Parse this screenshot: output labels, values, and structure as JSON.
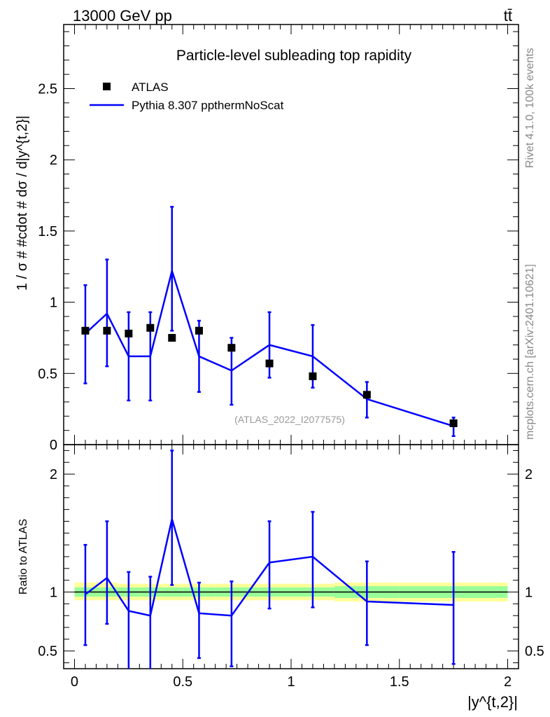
{
  "header": {
    "energy_label": "13000 GeV pp",
    "process_label": "tt̄"
  },
  "side_labels": {
    "rivet": "Rivet 4.1.0,  100k events",
    "mcplots": "mcplots.cern.ch [arXiv:2401.10621]"
  },
  "chart_data": {
    "type": "line",
    "title": "Particle-level subleading top rapidity",
    "analysis_id": "(ATLAS_2022_I2077575)",
    "xlabel": "|y^{t,2}|",
    "ylabel": "1 / σ # #cdot # dσ / d|y^{t,2}|",
    "ratio_ylabel": "Ratio to ATLAS",
    "xlim": [
      -0.05,
      2.05
    ],
    "ylim": [
      0,
      2.95
    ],
    "ratio_ylim": [
      0.35,
      2.25
    ],
    "x_ticks": [
      "0",
      "0.5",
      "1",
      "1.5",
      "2"
    ],
    "y_ticks": [
      "0",
      "0.5",
      "1",
      "1.5",
      "2",
      "2.5"
    ],
    "ratio_y_ticks": [
      "0.5",
      "1",
      "2"
    ],
    "legend": [
      {
        "label": "ATLAS",
        "marker": "square",
        "color": "#000000"
      },
      {
        "label": "Pythia 8.307 ppthermNoScat",
        "marker": "line",
        "color": "#0000ff"
      }
    ],
    "bin_edges": [
      0,
      0.1,
      0.2,
      0.3,
      0.4,
      0.5,
      0.65,
      0.8,
      1.0,
      1.2,
      1.5,
      2.0
    ],
    "x": [
      0.05,
      0.15,
      0.25,
      0.35,
      0.45,
      0.575,
      0.725,
      0.9,
      1.1,
      1.35,
      1.75
    ],
    "series": [
      {
        "name": "ATLAS",
        "values": [
          0.8,
          0.8,
          0.78,
          0.82,
          0.75,
          0.8,
          0.68,
          0.57,
          0.48,
          0.35,
          0.15
        ]
      },
      {
        "name": "Pythia 8.307 ppthermNoScat",
        "values": [
          0.78,
          0.92,
          0.62,
          0.62,
          1.22,
          0.62,
          0.52,
          0.7,
          0.62,
          0.32,
          0.13
        ],
        "err_low": [
          0.43,
          0.55,
          0.31,
          0.31,
          0.8,
          0.37,
          0.28,
          0.47,
          0.4,
          0.19,
          0.06
        ],
        "err_high": [
          1.12,
          1.3,
          0.93,
          0.93,
          1.67,
          0.87,
          0.75,
          0.93,
          0.84,
          0.44,
          0.19
        ]
      }
    ],
    "ratio": {
      "values": [
        0.98,
        1.12,
        0.84,
        0.8,
        1.62,
        0.82,
        0.8,
        1.25,
        1.3,
        0.92,
        0.89
      ],
      "err_low": [
        0.55,
        0.73,
        0.34,
        0.35,
        1.06,
        0.44,
        0.37,
        0.86,
        0.87,
        0.55,
        0.39
      ],
      "err_high": [
        1.4,
        1.6,
        1.17,
        1.13,
        2.2,
        1.08,
        1.09,
        1.6,
        1.68,
        1.26,
        1.34
      ],
      "band_yellow_low": [
        0.93,
        0.93,
        0.93,
        0.93,
        0.93,
        0.93,
        0.93,
        0.93,
        0.93,
        0.92,
        0.92
      ],
      "band_yellow_high": [
        1.08,
        1.08,
        1.07,
        1.07,
        1.07,
        1.07,
        1.07,
        1.07,
        1.07,
        1.08,
        1.08
      ],
      "band_green_low": [
        0.96,
        0.96,
        0.96,
        0.96,
        0.96,
        0.96,
        0.96,
        0.96,
        0.96,
        0.95,
        0.95
      ],
      "band_green_high": [
        1.04,
        1.04,
        1.04,
        1.04,
        1.04,
        1.04,
        1.04,
        1.04,
        1.04,
        1.05,
        1.05
      ]
    }
  }
}
